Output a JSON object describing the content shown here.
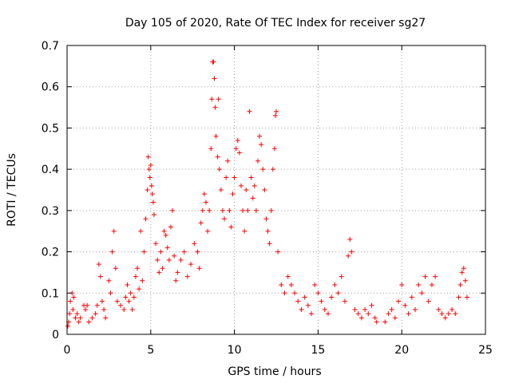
{
  "chart_data": {
    "type": "scatter",
    "title": "Day 105 of 2020, Rate Of TEC Index for receiver sg27",
    "xlabel": "GPS time / hours",
    "ylabel": "ROTI / TECUs",
    "xlim": [
      0,
      25
    ],
    "ylim": [
      0,
      0.7
    ],
    "xticks": [
      "0",
      "5",
      "10",
      "15",
      "20",
      "25"
    ],
    "yticks": [
      "0",
      "0.1",
      "0.2",
      "0.3",
      "0.4",
      "0.5",
      "0.6",
      "0.7"
    ],
    "grid": true,
    "marker": "+",
    "color": "#ff0000",
    "series": [
      {
        "values_note_omitted": true,
        "points": [
          [
            0.05,
            0.02
          ],
          [
            0.1,
            0.03
          ],
          [
            0.15,
            0.05
          ],
          [
            0.2,
            0.08
          ],
          [
            0.3,
            0.1
          ],
          [
            0.35,
            0.06
          ],
          [
            0.4,
            0.09
          ],
          [
            0.5,
            0.04
          ],
          [
            0.6,
            0.05
          ],
          [
            0.7,
            0.03
          ],
          [
            0.8,
            0.04
          ],
          [
            1.0,
            0.07
          ],
          [
            1.1,
            0.06
          ],
          [
            1.2,
            0.07
          ],
          [
            1.3,
            0.03
          ],
          [
            1.5,
            0.04
          ],
          [
            1.7,
            0.05
          ],
          [
            1.8,
            0.07
          ],
          [
            1.9,
            0.17
          ],
          [
            2.0,
            0.14
          ],
          [
            2.1,
            0.08
          ],
          [
            2.2,
            0.06
          ],
          [
            2.3,
            0.04
          ],
          [
            2.5,
            0.13
          ],
          [
            2.6,
            0.1
          ],
          [
            2.7,
            0.2
          ],
          [
            2.8,
            0.25
          ],
          [
            2.9,
            0.16
          ],
          [
            3.0,
            0.08
          ],
          [
            3.2,
            0.07
          ],
          [
            3.4,
            0.06
          ],
          [
            3.5,
            0.09
          ],
          [
            3.6,
            0.12
          ],
          [
            3.7,
            0.08
          ],
          [
            3.8,
            0.1
          ],
          [
            3.9,
            0.06
          ],
          [
            4.0,
            0.09
          ],
          [
            4.1,
            0.14
          ],
          [
            4.2,
            0.16
          ],
          [
            4.3,
            0.11
          ],
          [
            4.4,
            0.25
          ],
          [
            4.5,
            0.13
          ],
          [
            4.6,
            0.2
          ],
          [
            4.7,
            0.28
          ],
          [
            4.8,
            0.35
          ],
          [
            4.85,
            0.43
          ],
          [
            4.9,
            0.4
          ],
          [
            4.95,
            0.38
          ],
          [
            5.0,
            0.41
          ],
          [
            5.05,
            0.36
          ],
          [
            5.1,
            0.34
          ],
          [
            5.15,
            0.32
          ],
          [
            5.2,
            0.29
          ],
          [
            5.3,
            0.22
          ],
          [
            5.4,
            0.18
          ],
          [
            5.5,
            0.15
          ],
          [
            5.6,
            0.2
          ],
          [
            5.7,
            0.16
          ],
          [
            5.8,
            0.25
          ],
          [
            5.9,
            0.24
          ],
          [
            6.0,
            0.21
          ],
          [
            6.1,
            0.18
          ],
          [
            6.2,
            0.26
          ],
          [
            6.3,
            0.3
          ],
          [
            6.4,
            0.19
          ],
          [
            6.5,
            0.13
          ],
          [
            6.6,
            0.15
          ],
          [
            6.8,
            0.18
          ],
          [
            7.0,
            0.2
          ],
          [
            7.2,
            0.14
          ],
          [
            7.4,
            0.17
          ],
          [
            7.6,
            0.22
          ],
          [
            7.8,
            0.2
          ],
          [
            7.9,
            0.16
          ],
          [
            8.0,
            0.27
          ],
          [
            8.1,
            0.3
          ],
          [
            8.2,
            0.34
          ],
          [
            8.3,
            0.32
          ],
          [
            8.4,
            0.25
          ],
          [
            8.5,
            0.3
          ],
          [
            8.6,
            0.45
          ],
          [
            8.65,
            0.57
          ],
          [
            8.7,
            0.66
          ],
          [
            8.75,
            0.66
          ],
          [
            8.8,
            0.62
          ],
          [
            8.85,
            0.55
          ],
          [
            8.9,
            0.48
          ],
          [
            9.0,
            0.43
          ],
          [
            9.05,
            0.57
          ],
          [
            9.1,
            0.4
          ],
          [
            9.2,
            0.35
          ],
          [
            9.3,
            0.3
          ],
          [
            9.4,
            0.28
          ],
          [
            9.5,
            0.38
          ],
          [
            9.6,
            0.42
          ],
          [
            9.7,
            0.3
          ],
          [
            9.8,
            0.26
          ],
          [
            9.9,
            0.34
          ],
          [
            10.0,
            0.38
          ],
          [
            10.1,
            0.45
          ],
          [
            10.2,
            0.47
          ],
          [
            10.3,
            0.44
          ],
          [
            10.4,
            0.36
          ],
          [
            10.5,
            0.3
          ],
          [
            10.6,
            0.25
          ],
          [
            10.7,
            0.35
          ],
          [
            10.8,
            0.3
          ],
          [
            10.9,
            0.54
          ],
          [
            11.0,
            0.38
          ],
          [
            11.1,
            0.33
          ],
          [
            11.2,
            0.36
          ],
          [
            11.3,
            0.3
          ],
          [
            11.4,
            0.42
          ],
          [
            11.5,
            0.48
          ],
          [
            11.6,
            0.46
          ],
          [
            11.7,
            0.4
          ],
          [
            11.8,
            0.35
          ],
          [
            11.9,
            0.28
          ],
          [
            12.0,
            0.25
          ],
          [
            12.1,
            0.22
          ],
          [
            12.2,
            0.3
          ],
          [
            12.3,
            0.4
          ],
          [
            12.4,
            0.45
          ],
          [
            12.45,
            0.53
          ],
          [
            12.5,
            0.54
          ],
          [
            12.6,
            0.2
          ],
          [
            12.8,
            0.12
          ],
          [
            13.0,
            0.1
          ],
          [
            13.2,
            0.14
          ],
          [
            13.4,
            0.12
          ],
          [
            13.6,
            0.1
          ],
          [
            13.8,
            0.08
          ],
          [
            14.0,
            0.06
          ],
          [
            14.2,
            0.09
          ],
          [
            14.4,
            0.07
          ],
          [
            14.6,
            0.05
          ],
          [
            14.8,
            0.12
          ],
          [
            15.0,
            0.1
          ],
          [
            15.2,
            0.08
          ],
          [
            15.4,
            0.06
          ],
          [
            15.6,
            0.05
          ],
          [
            15.8,
            0.09
          ],
          [
            16.0,
            0.12
          ],
          [
            16.2,
            0.1
          ],
          [
            16.4,
            0.14
          ],
          [
            16.6,
            0.08
          ],
          [
            16.8,
            0.19
          ],
          [
            16.9,
            0.23
          ],
          [
            17.0,
            0.2
          ],
          [
            17.2,
            0.06
          ],
          [
            17.4,
            0.05
          ],
          [
            17.6,
            0.04
          ],
          [
            17.8,
            0.06
          ],
          [
            18.0,
            0.05
          ],
          [
            18.2,
            0.07
          ],
          [
            18.4,
            0.04
          ],
          [
            18.5,
            0.03
          ],
          [
            19.0,
            0.03
          ],
          [
            19.2,
            0.05
          ],
          [
            19.4,
            0.06
          ],
          [
            19.6,
            0.04
          ],
          [
            19.8,
            0.08
          ],
          [
            20.0,
            0.12
          ],
          [
            20.2,
            0.07
          ],
          [
            20.4,
            0.05
          ],
          [
            20.6,
            0.09
          ],
          [
            20.8,
            0.06
          ],
          [
            21.0,
            0.12
          ],
          [
            21.2,
            0.1
          ],
          [
            21.4,
            0.14
          ],
          [
            21.6,
            0.08
          ],
          [
            21.8,
            0.12
          ],
          [
            22.0,
            0.14
          ],
          [
            22.2,
            0.06
          ],
          [
            22.4,
            0.05
          ],
          [
            22.6,
            0.04
          ],
          [
            22.8,
            0.05
          ],
          [
            23.0,
            0.06
          ],
          [
            23.2,
            0.05
          ],
          [
            23.4,
            0.09
          ],
          [
            23.5,
            0.12
          ],
          [
            23.6,
            0.15
          ],
          [
            23.7,
            0.16
          ],
          [
            23.8,
            0.13
          ],
          [
            23.9,
            0.09
          ]
        ]
      }
    ]
  }
}
